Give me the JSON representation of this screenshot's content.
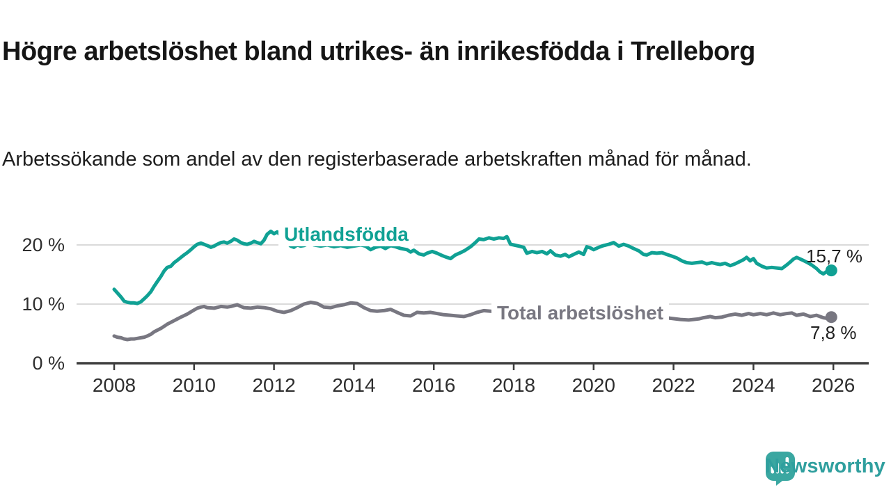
{
  "page": {
    "title": "Högre arbetslöshet bland utrikes- än inrikesfödda i Trelleborg",
    "subtitle": "Arbetssökande som andel av den registerbaserade arbetskraften månad för månad."
  },
  "branding": {
    "logo_text": "Newsworthy",
    "logo_icon": "bar-chart-speech-bubble-icon",
    "logo_mark_color": "#3aa7a1",
    "logo_text_color": "#2f9f9e"
  },
  "chart_data": {
    "type": "line",
    "title": "Högre arbetslöshet bland utrikes- än inrikesfödda i Trelleborg",
    "subtitle": "Arbetssökande som andel av den registerbaserade arbetskraften månad för månad.",
    "unit": "%",
    "grid": "horizontal-only",
    "legend_position": "inline-labels",
    "x_axis": {
      "range": [
        2007.05,
        2026.9
      ],
      "ticks": [
        2008,
        2010,
        2012,
        2014,
        2016,
        2018,
        2020,
        2022,
        2024,
        2026
      ],
      "labels": [
        "2008",
        "2010",
        "2012",
        "2014",
        "2016",
        "2018",
        "2020",
        "2022",
        "2024",
        "2026"
      ]
    },
    "y_axis": {
      "range": [
        0,
        24
      ],
      "ticks": [
        0,
        10,
        20
      ],
      "labels": [
        "0 %",
        "10 %",
        "20 %"
      ]
    },
    "series": [
      {
        "name": "Utlandsfödda",
        "color": "#10a194",
        "end_label": "15,7 %",
        "end_value": 15.7,
        "points": [
          [
            2008.0,
            12.5
          ],
          [
            2008.08,
            11.9
          ],
          [
            2008.17,
            11.2
          ],
          [
            2008.25,
            10.5
          ],
          [
            2008.33,
            10.3
          ],
          [
            2008.42,
            10.2
          ],
          [
            2008.5,
            10.2
          ],
          [
            2008.58,
            10.1
          ],
          [
            2008.67,
            10.4
          ],
          [
            2008.75,
            10.9
          ],
          [
            2008.83,
            11.4
          ],
          [
            2008.92,
            12.1
          ],
          [
            2009.0,
            13.0
          ],
          [
            2009.08,
            13.8
          ],
          [
            2009.17,
            14.7
          ],
          [
            2009.25,
            15.6
          ],
          [
            2009.33,
            16.2
          ],
          [
            2009.42,
            16.4
          ],
          [
            2009.5,
            17.0
          ],
          [
            2009.58,
            17.4
          ],
          [
            2009.67,
            17.9
          ],
          [
            2009.75,
            18.3
          ],
          [
            2009.83,
            18.7
          ],
          [
            2009.92,
            19.2
          ],
          [
            2010.0,
            19.7
          ],
          [
            2010.08,
            20.1
          ],
          [
            2010.17,
            20.3
          ],
          [
            2010.25,
            20.1
          ],
          [
            2010.33,
            19.9
          ],
          [
            2010.42,
            19.6
          ],
          [
            2010.5,
            19.8
          ],
          [
            2010.58,
            20.1
          ],
          [
            2010.67,
            20.4
          ],
          [
            2010.75,
            20.5
          ],
          [
            2010.83,
            20.3
          ],
          [
            2010.92,
            20.6
          ],
          [
            2011.0,
            21.0
          ],
          [
            2011.08,
            20.8
          ],
          [
            2011.17,
            20.4
          ],
          [
            2011.25,
            20.2
          ],
          [
            2011.33,
            20.1
          ],
          [
            2011.42,
            20.3
          ],
          [
            2011.5,
            20.6
          ],
          [
            2011.58,
            20.4
          ],
          [
            2011.67,
            20.2
          ],
          [
            2011.75,
            20.8
          ],
          [
            2011.83,
            21.8
          ],
          [
            2011.92,
            22.3
          ],
          [
            2012.0,
            21.9
          ],
          [
            2012.08,
            22.2
          ],
          [
            2012.17,
            21.6
          ],
          [
            2012.25,
            21.0
          ],
          [
            2012.33,
            20.4
          ],
          [
            2012.42,
            19.8
          ],
          [
            2012.5,
            19.6
          ],
          [
            2012.58,
            20.0
          ],
          [
            2012.67,
            19.8
          ],
          [
            2012.75,
            19.9
          ],
          [
            2012.83,
            20.1
          ],
          [
            2012.92,
            20.2
          ],
          [
            2013.0,
            20.0
          ],
          [
            2013.17,
            19.8
          ],
          [
            2013.33,
            20.0
          ],
          [
            2013.5,
            19.7
          ],
          [
            2013.67,
            19.9
          ],
          [
            2013.83,
            19.6
          ],
          [
            2014.0,
            19.8
          ],
          [
            2014.17,
            20.0
          ],
          [
            2014.29,
            19.8
          ],
          [
            2014.42,
            19.2
          ],
          [
            2014.54,
            19.6
          ],
          [
            2014.67,
            19.8
          ],
          [
            2014.79,
            19.4
          ],
          [
            2014.92,
            19.9
          ],
          [
            2015.04,
            19.7
          ],
          [
            2015.17,
            19.4
          ],
          [
            2015.33,
            19.2
          ],
          [
            2015.42,
            18.8
          ],
          [
            2015.5,
            19.1
          ],
          [
            2015.63,
            18.5
          ],
          [
            2015.75,
            18.3
          ],
          [
            2015.83,
            18.6
          ],
          [
            2015.96,
            18.9
          ],
          [
            2016.08,
            18.6
          ],
          [
            2016.21,
            18.2
          ],
          [
            2016.33,
            17.9
          ],
          [
            2016.42,
            17.7
          ],
          [
            2016.54,
            18.3
          ],
          [
            2016.67,
            18.7
          ],
          [
            2016.79,
            19.1
          ],
          [
            2016.92,
            19.7
          ],
          [
            2017.04,
            20.4
          ],
          [
            2017.13,
            21.0
          ],
          [
            2017.25,
            20.9
          ],
          [
            2017.38,
            21.2
          ],
          [
            2017.5,
            21.0
          ],
          [
            2017.63,
            21.2
          ],
          [
            2017.75,
            21.1
          ],
          [
            2017.83,
            21.4
          ],
          [
            2017.92,
            20.1
          ],
          [
            2018.0,
            20.0
          ],
          [
            2018.13,
            19.8
          ],
          [
            2018.25,
            19.6
          ],
          [
            2018.33,
            18.6
          ],
          [
            2018.46,
            18.9
          ],
          [
            2018.58,
            18.7
          ],
          [
            2018.71,
            18.9
          ],
          [
            2018.83,
            18.5
          ],
          [
            2018.92,
            19.0
          ],
          [
            2019.04,
            18.3
          ],
          [
            2019.17,
            18.1
          ],
          [
            2019.29,
            18.4
          ],
          [
            2019.38,
            18.0
          ],
          [
            2019.5,
            18.4
          ],
          [
            2019.63,
            18.8
          ],
          [
            2019.75,
            18.4
          ],
          [
            2019.83,
            19.7
          ],
          [
            2019.92,
            19.5
          ],
          [
            2020.0,
            19.2
          ],
          [
            2020.13,
            19.6
          ],
          [
            2020.25,
            19.9
          ],
          [
            2020.38,
            20.1
          ],
          [
            2020.5,
            20.4
          ],
          [
            2020.63,
            19.8
          ],
          [
            2020.75,
            20.1
          ],
          [
            2020.88,
            19.8
          ],
          [
            2021.0,
            19.4
          ],
          [
            2021.13,
            19.0
          ],
          [
            2021.25,
            18.4
          ],
          [
            2021.33,
            18.3
          ],
          [
            2021.46,
            18.7
          ],
          [
            2021.58,
            18.6
          ],
          [
            2021.71,
            18.7
          ],
          [
            2021.83,
            18.4
          ],
          [
            2021.96,
            18.1
          ],
          [
            2022.08,
            17.8
          ],
          [
            2022.21,
            17.3
          ],
          [
            2022.33,
            17.0
          ],
          [
            2022.46,
            16.9
          ],
          [
            2022.58,
            17.0
          ],
          [
            2022.71,
            17.1
          ],
          [
            2022.83,
            16.8
          ],
          [
            2022.96,
            17.0
          ],
          [
            2023.08,
            16.8
          ],
          [
            2023.17,
            16.7
          ],
          [
            2023.29,
            16.9
          ],
          [
            2023.42,
            16.5
          ],
          [
            2023.54,
            16.8
          ],
          [
            2023.63,
            17.1
          ],
          [
            2023.75,
            17.5
          ],
          [
            2023.83,
            17.9
          ],
          [
            2023.92,
            17.3
          ],
          [
            2024.0,
            17.7
          ],
          [
            2024.08,
            16.9
          ],
          [
            2024.21,
            16.4
          ],
          [
            2024.33,
            16.1
          ],
          [
            2024.46,
            16.2
          ],
          [
            2024.58,
            16.1
          ],
          [
            2024.71,
            16.0
          ],
          [
            2024.83,
            16.6
          ],
          [
            2024.92,
            17.1
          ],
          [
            2025.0,
            17.6
          ],
          [
            2025.08,
            17.9
          ],
          [
            2025.21,
            17.5
          ],
          [
            2025.33,
            17.1
          ],
          [
            2025.46,
            16.6
          ],
          [
            2025.58,
            16.0
          ],
          [
            2025.67,
            15.4
          ],
          [
            2025.75,
            15.1
          ],
          [
            2025.83,
            15.5
          ],
          [
            2025.95,
            15.7
          ]
        ]
      },
      {
        "name": "Total arbetslöshet",
        "color": "#787781",
        "end_label": "7,8 %",
        "end_value": 7.8,
        "points": [
          [
            2008.0,
            4.6
          ],
          [
            2008.08,
            4.4
          ],
          [
            2008.17,
            4.3
          ],
          [
            2008.25,
            4.1
          ],
          [
            2008.33,
            4.0
          ],
          [
            2008.42,
            4.1
          ],
          [
            2008.5,
            4.1
          ],
          [
            2008.58,
            4.2
          ],
          [
            2008.67,
            4.3
          ],
          [
            2008.75,
            4.4
          ],
          [
            2008.83,
            4.6
          ],
          [
            2008.92,
            4.9
          ],
          [
            2009.0,
            5.3
          ],
          [
            2009.17,
            5.9
          ],
          [
            2009.33,
            6.6
          ],
          [
            2009.5,
            7.2
          ],
          [
            2009.67,
            7.8
          ],
          [
            2009.83,
            8.3
          ],
          [
            2010.0,
            9.0
          ],
          [
            2010.08,
            9.3
          ],
          [
            2010.17,
            9.5
          ],
          [
            2010.25,
            9.6
          ],
          [
            2010.33,
            9.4
          ],
          [
            2010.5,
            9.3
          ],
          [
            2010.67,
            9.6
          ],
          [
            2010.83,
            9.5
          ],
          [
            2010.92,
            9.6
          ],
          [
            2011.08,
            9.9
          ],
          [
            2011.17,
            9.6
          ],
          [
            2011.25,
            9.4
          ],
          [
            2011.42,
            9.3
          ],
          [
            2011.58,
            9.5
          ],
          [
            2011.75,
            9.4
          ],
          [
            2011.92,
            9.2
          ],
          [
            2012.08,
            8.8
          ],
          [
            2012.25,
            8.6
          ],
          [
            2012.42,
            8.9
          ],
          [
            2012.58,
            9.4
          ],
          [
            2012.75,
            10.0
          ],
          [
            2012.92,
            10.3
          ],
          [
            2013.08,
            10.1
          ],
          [
            2013.25,
            9.5
          ],
          [
            2013.42,
            9.4
          ],
          [
            2013.58,
            9.7
          ],
          [
            2013.75,
            9.9
          ],
          [
            2013.92,
            10.2
          ],
          [
            2014.08,
            10.1
          ],
          [
            2014.25,
            9.4
          ],
          [
            2014.42,
            8.9
          ],
          [
            2014.58,
            8.8
          ],
          [
            2014.75,
            8.9
          ],
          [
            2014.92,
            9.1
          ],
          [
            2015.08,
            8.6
          ],
          [
            2015.25,
            8.1
          ],
          [
            2015.42,
            8.0
          ],
          [
            2015.58,
            8.6
          ],
          [
            2015.75,
            8.5
          ],
          [
            2015.92,
            8.6
          ],
          [
            2016.08,
            8.4
          ],
          [
            2016.25,
            8.2
          ],
          [
            2016.42,
            8.1
          ],
          [
            2016.58,
            8.0
          ],
          [
            2016.75,
            7.9
          ],
          [
            2016.92,
            8.2
          ],
          [
            2017.08,
            8.6
          ],
          [
            2017.25,
            8.9
          ],
          [
            2017.42,
            8.8
          ],
          [
            2017.58,
            8.6
          ],
          [
            2017.75,
            8.7
          ],
          [
            2017.92,
            8.6
          ],
          [
            2018.25,
            8.4
          ],
          [
            2018.58,
            8.2
          ],
          [
            2018.92,
            8.1
          ],
          [
            2019.25,
            8.0
          ],
          [
            2019.58,
            8.1
          ],
          [
            2019.92,
            8.4
          ],
          [
            2020.25,
            8.7
          ],
          [
            2020.58,
            8.6
          ],
          [
            2020.92,
            8.4
          ],
          [
            2021.25,
            8.1
          ],
          [
            2021.58,
            7.9
          ],
          [
            2021.92,
            7.6
          ],
          [
            2022.17,
            7.4
          ],
          [
            2022.38,
            7.3
          ],
          [
            2022.5,
            7.4
          ],
          [
            2022.63,
            7.5
          ],
          [
            2022.75,
            7.7
          ],
          [
            2022.92,
            7.9
          ],
          [
            2023.04,
            7.7
          ],
          [
            2023.21,
            7.8
          ],
          [
            2023.38,
            8.1
          ],
          [
            2023.54,
            8.3
          ],
          [
            2023.71,
            8.1
          ],
          [
            2023.88,
            8.4
          ],
          [
            2024.0,
            8.2
          ],
          [
            2024.17,
            8.4
          ],
          [
            2024.33,
            8.2
          ],
          [
            2024.5,
            8.5
          ],
          [
            2024.67,
            8.2
          ],
          [
            2024.83,
            8.4
          ],
          [
            2024.96,
            8.5
          ],
          [
            2025.08,
            8.1
          ],
          [
            2025.25,
            8.3
          ],
          [
            2025.42,
            7.9
          ],
          [
            2025.58,
            8.1
          ],
          [
            2025.75,
            7.7
          ],
          [
            2025.83,
            7.6
          ],
          [
            2025.95,
            7.8
          ]
        ]
      }
    ]
  }
}
